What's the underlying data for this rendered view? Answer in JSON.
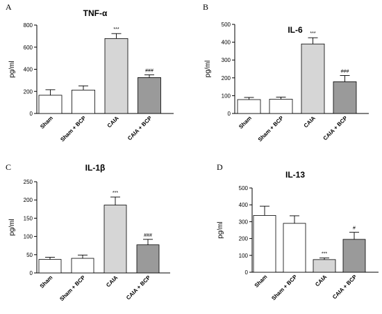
{
  "chart_data": [
    {
      "type": "bar",
      "panel_letter": "A",
      "title": "TNF-α",
      "ylabel": "pg/ml",
      "categories": [
        "Sham",
        "Sham + BCP",
        "CAIA",
        "CAIA + BCP"
      ],
      "values": [
        165,
        212,
        678,
        325
      ],
      "errors": [
        50,
        38,
        45,
        25
      ],
      "significance": [
        "",
        "",
        "***",
        "###"
      ],
      "ylim": [
        0,
        800
      ],
      "yticks": [
        0,
        200,
        400,
        600,
        800
      ],
      "colors": [
        "#ffffff",
        "#ffffff",
        "#d6d6d6",
        "#9a9a9a"
      ]
    },
    {
      "type": "bar",
      "panel_letter": "B",
      "title": "IL-6",
      "ylabel": "pg/ml",
      "categories": [
        "Sham",
        "Sham + BCP",
        "CAIA",
        "CAIA + BCP"
      ],
      "values": [
        78,
        80,
        390,
        178
      ],
      "errors": [
        12,
        12,
        35,
        35
      ],
      "significance": [
        "",
        "",
        "***",
        "###"
      ],
      "ylim": [
        0,
        500
      ],
      "yticks": [
        0,
        100,
        200,
        300,
        400,
        500
      ],
      "colors": [
        "#ffffff",
        "#ffffff",
        "#d6d6d6",
        "#9a9a9a"
      ]
    },
    {
      "type": "bar",
      "panel_letter": "C",
      "title": "IL-1β",
      "ylabel": "pg/ml",
      "categories": [
        "Sham",
        "Sham + BCP",
        "CAIA",
        "CAIA + BCP"
      ],
      "values": [
        37,
        40,
        186,
        77
      ],
      "errors": [
        6,
        9,
        22,
        15
      ],
      "significance": [
        "",
        "",
        "***",
        "###"
      ],
      "ylim": [
        0,
        250
      ],
      "yticks": [
        0,
        50,
        100,
        150,
        200,
        250
      ],
      "colors": [
        "#ffffff",
        "#ffffff",
        "#d6d6d6",
        "#9a9a9a"
      ]
    },
    {
      "type": "bar",
      "panel_letter": "D",
      "title": "IL-13",
      "ylabel": "pg/ml",
      "categories": [
        "Sham",
        "Sham + BCP",
        "CAIA",
        "CAIA + BCP"
      ],
      "values": [
        337,
        290,
        75,
        195
      ],
      "errors": [
        55,
        45,
        10,
        42
      ],
      "significance": [
        "",
        "",
        "***",
        "#"
      ],
      "ylim": [
        0,
        500
      ],
      "yticks": [
        0,
        100,
        200,
        300,
        400,
        500
      ],
      "colors": [
        "#ffffff",
        "#ffffff",
        "#d6d6d6",
        "#9a9a9a"
      ]
    }
  ]
}
